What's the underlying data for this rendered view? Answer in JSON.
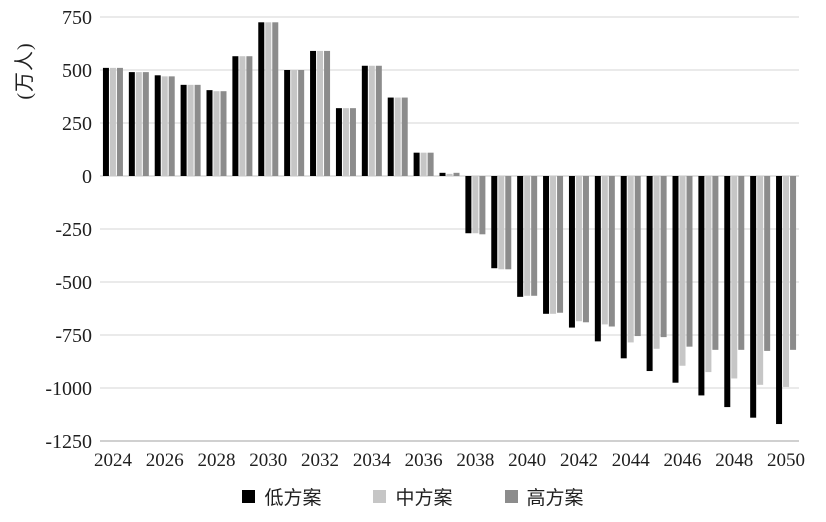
{
  "chart_data": {
    "type": "bar",
    "title": "",
    "ylabel": "(万人)",
    "categories": [
      2024,
      2025,
      2026,
      2027,
      2028,
      2029,
      2030,
      2031,
      2032,
      2033,
      2034,
      2035,
      2036,
      2037,
      2038,
      2039,
      2040,
      2041,
      2042,
      2043,
      2044,
      2045,
      2046,
      2047,
      2048,
      2049,
      2050
    ],
    "series": [
      {
        "name": "低方案",
        "color": "#000000",
        "values": [
          510,
          490,
          475,
          430,
          405,
          565,
          725,
          500,
          590,
          320,
          520,
          370,
          110,
          15,
          -270,
          -435,
          -570,
          -650,
          -715,
          -780,
          -860,
          -920,
          -975,
          -1035,
          -1090,
          -1140,
          -1170
        ]
      },
      {
        "name": "中方案",
        "color": "#c6c6c6",
        "values": [
          510,
          490,
          470,
          430,
          400,
          565,
          725,
          500,
          590,
          320,
          520,
          370,
          110,
          10,
          -270,
          -440,
          -565,
          -650,
          -685,
          -700,
          -785,
          -815,
          -895,
          -925,
          -955,
          -985,
          -995
        ]
      },
      {
        "name": "高方案",
        "color": "#8c8c8c",
        "values": [
          510,
          490,
          470,
          430,
          400,
          565,
          725,
          500,
          590,
          320,
          520,
          370,
          110,
          15,
          -275,
          -440,
          -565,
          -645,
          -690,
          -710,
          -755,
          -760,
          -805,
          -820,
          -820,
          -825,
          -820
        ]
      }
    ],
    "ylim": [
      -1250,
      750
    ],
    "ytick_step": 250,
    "ytick_labels": [
      "750",
      "500",
      "250",
      "0",
      "-250",
      "-500",
      "-750",
      "-1000",
      "-1250"
    ],
    "xtick_labels": [
      "2024",
      "2026",
      "2028",
      "2030",
      "2032",
      "2034",
      "2036",
      "2038",
      "2040",
      "2042",
      "2044",
      "2046",
      "2048",
      "2050"
    ],
    "grid": "horizontal",
    "legend_position": "bottom"
  },
  "colors": {
    "background": "#ffffff",
    "grid_line": "#d6d6d6",
    "zero_line": "#c6c6c6",
    "bottom_line": "#c0c0c0",
    "text": "#1f1f1f"
  }
}
